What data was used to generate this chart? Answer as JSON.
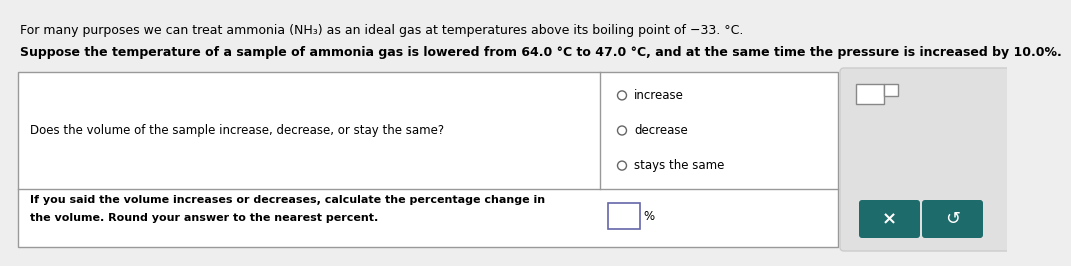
{
  "line1": "For many purposes we can treat ammonia ",
  "nh3": "(NH₃)",
  "line1b": " as an ideal gas at temperatures above its boiling point of −33. °C.",
  "line2": "Suppose the temperature of a sample of ammonia gas is lowered from 64.0 °C to 47.0 °C, and at the same time the pressure is increased by 10.0%.",
  "q1_label": "Does the volume of the sample increase, decrease, or stay the same?",
  "opt_increase": "increase",
  "opt_decrease": "decrease",
  "opt_stays": "stays the same",
  "q2_label1": "If you said the volume increases or decreases, calculate the percentage change in",
  "q2_label2": "the volume. Round your answer to the nearest percent.",
  "percent_symbol": "%",
  "bg_color": "#eeeeee",
  "table_bg": "#ffffff",
  "table_border": "#999999",
  "right_panel_bg": "#e0e0e0",
  "button_bg": "#1d6b6b",
  "button_icon_x": "×",
  "button_icon_undo": "↺",
  "input_box_color": "#ffffff",
  "text_color": "#000000",
  "line1_fontsize": 9.0,
  "line2_fontsize": 9.0,
  "body_fontsize": 8.5
}
